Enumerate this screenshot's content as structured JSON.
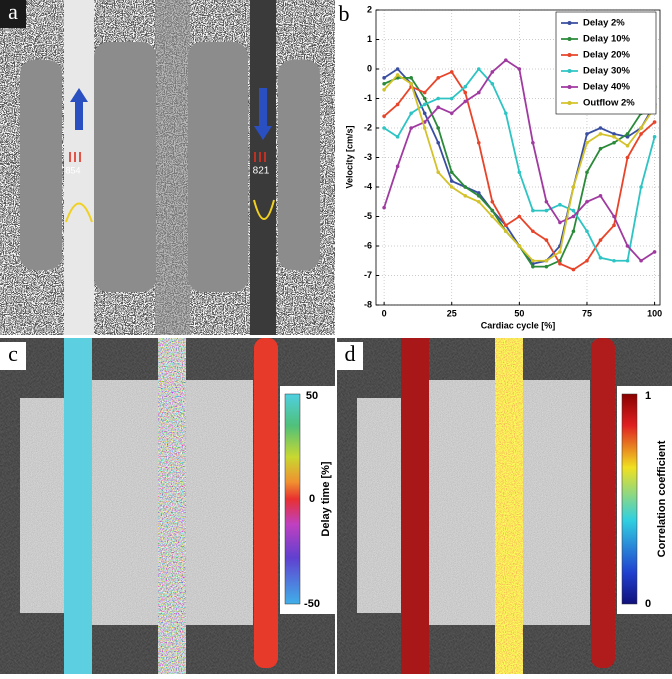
{
  "panel_labels": [
    "a",
    "b",
    "c",
    "d"
  ],
  "panel_a": {
    "vessel_labels": [
      "854",
      "821"
    ]
  },
  "panel_c": {
    "colorbar_ticks": [
      "50",
      "0",
      "-50"
    ],
    "colorbar_label": "Delay time [%]"
  },
  "panel_d": {
    "colorbar_ticks": [
      "1",
      "0"
    ],
    "colorbar_label": "Correlation coefficient"
  },
  "chart_data": {
    "type": "line",
    "xlabel": "Cardiac cycle [%]",
    "ylabel": "Velocity [cm/s]",
    "x": [
      0,
      5,
      10,
      15,
      20,
      25,
      30,
      35,
      40,
      45,
      50,
      55,
      60,
      65,
      70,
      75,
      80,
      85,
      90,
      95,
      100
    ],
    "xlim": [
      -3,
      102
    ],
    "xticks": [
      0,
      25,
      50,
      75,
      100
    ],
    "ylim": [
      -8,
      2
    ],
    "yticks": [
      -8,
      -7,
      -6,
      -5,
      -4,
      -3,
      -2,
      -1,
      0,
      1,
      2
    ],
    "grid": true,
    "legend": "upper right",
    "series": [
      {
        "name": "Delay 2%",
        "color": "#3a4ea0",
        "values": [
          -0.3,
          0,
          -0.5,
          -1.5,
          -2.5,
          -3.8,
          -4,
          -4.2,
          -4.8,
          -5.3,
          -6,
          -6.6,
          -6.5,
          -6,
          -4,
          -2.2,
          -2,
          -2.2,
          -2.3,
          -2,
          -1.2
        ]
      },
      {
        "name": "Delay 10%",
        "color": "#2a8a3a",
        "values": [
          -0.5,
          -0.3,
          -0.3,
          -1,
          -2,
          -3.5,
          -4,
          -4.3,
          -4.8,
          -5.5,
          -6,
          -6.7,
          -6.7,
          -6.5,
          -5.5,
          -3.5,
          -2.7,
          -2.5,
          -2.2,
          -1.5,
          -0.6
        ]
      },
      {
        "name": "Delay 20%",
        "color": "#e8442a",
        "values": [
          -1.6,
          -1.2,
          -0.6,
          -0.8,
          -0.3,
          -0.1,
          -0.8,
          -2.5,
          -4.5,
          -5.3,
          -5,
          -5.5,
          -5.8,
          -6.6,
          -6.8,
          -6.5,
          -5.8,
          -5.3,
          -3,
          -2.2,
          -1.8
        ]
      },
      {
        "name": "Delay 30%",
        "color": "#2ec4c4",
        "values": [
          -2,
          -2.3,
          -1.5,
          -1.2,
          -1,
          -1,
          -0.6,
          0,
          -0.5,
          -1.5,
          -3.5,
          -4.8,
          -4.8,
          -4.6,
          -4.8,
          -5.5,
          -6.4,
          -6.5,
          -6.5,
          -4,
          -2.3
        ]
      },
      {
        "name": "Delay 40%",
        "color": "#a03aa0",
        "values": [
          -4.7,
          -3.3,
          -2,
          -1.8,
          -1.3,
          -1.5,
          -1.1,
          -0.8,
          -0.1,
          0.3,
          0,
          -2.5,
          -4.5,
          -5.2,
          -5,
          -4.5,
          -4.3,
          -5,
          -6,
          -6.5,
          -6.2
        ]
      },
      {
        "name": "Outflow 2%",
        "color": "#d4c22a",
        "values": [
          -0.7,
          -0.2,
          -0.5,
          -2,
          -3.5,
          -4,
          -4.3,
          -4.5,
          -5,
          -5.5,
          -6,
          -6.5,
          -6.5,
          -6.2,
          -4,
          -2.5,
          -2.2,
          -2.3,
          -2.6,
          -2,
          -1.3
        ]
      }
    ]
  }
}
